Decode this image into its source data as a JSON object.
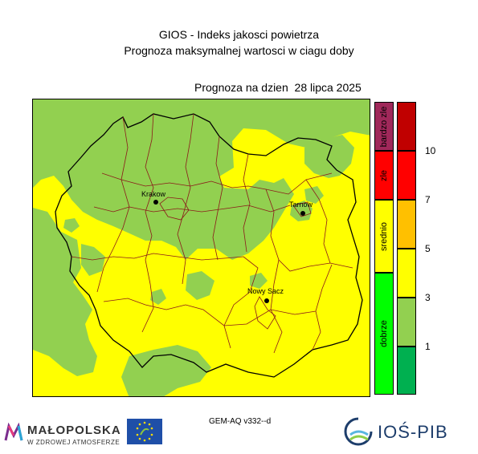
{
  "header": {
    "title_line1": "GIOS - Indeks jakosci powietrza",
    "title_line2": "Prognoza maksymalnej wartosci w ciagu doby",
    "forecast_date": "Prognoza na dzien  28 lipca 2025"
  },
  "map": {
    "cities": [
      {
        "name": "Krakow"
      },
      {
        "name": "Tarnow"
      },
      {
        "name": "Nowy Sacz"
      }
    ],
    "colors": {
      "yellow": "#ffff00",
      "light_green": "#92d050",
      "province_border": "#000000",
      "county_border": "#8b1a1a"
    }
  },
  "legend": {
    "categories": [
      {
        "label": "bardzo zle",
        "color": "#a0285a"
      },
      {
        "label": "zle",
        "color": "#ff0000"
      },
      {
        "label": "srednio",
        "color": "#ffff00"
      },
      {
        "label": "dobrze",
        "color": "#00ff00"
      }
    ],
    "scale": [
      {
        "color": "#c00000"
      },
      {
        "color": "#ff0000"
      },
      {
        "color": "#ffc000"
      },
      {
        "color": "#ffff00"
      },
      {
        "color": "#92d050"
      },
      {
        "color": "#00b050"
      }
    ],
    "ticks": [
      "10",
      "7",
      "5",
      "3",
      "1"
    ]
  },
  "footer": {
    "model": "GEM-AQ v332--d",
    "logo_malopolska": "MAŁOPOLSKA",
    "logo_malopolska_sub": "W ZDROWEJ ATMOSFERZE",
    "logo_ios": "IOŚ-PIB",
    "logo_eu_icon": "eu-life-icon"
  }
}
